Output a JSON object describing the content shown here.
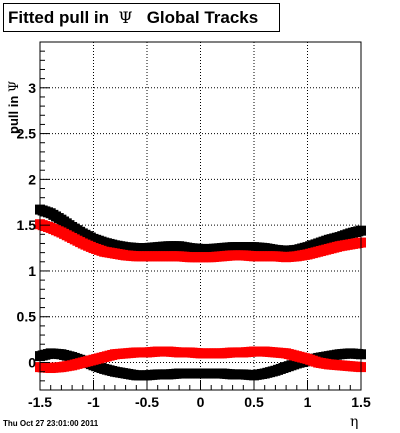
{
  "title": {
    "prefix": "Fitted pull in",
    "symbol": "Ψ",
    "suffix": "Global Tracks"
  },
  "ylabel": {
    "prefix": "pull in",
    "symbol": "Ψ"
  },
  "xlabel": "η",
  "datestamp": "Thu Oct 27 23:01:00 2011",
  "colors": {
    "black_series": "#000000",
    "red_series": "#ff0000",
    "grid": "#000000",
    "background": "#ffffff"
  },
  "chart_data": {
    "type": "scatter",
    "title": "Fitted pull in Ψ Global Tracks",
    "xlabel": "η",
    "ylabel": "pull in Ψ",
    "xlim": [
      -1.5,
      1.5
    ],
    "ylim": [
      -0.3,
      3.5
    ],
    "grid": true,
    "x_ticks": [
      "-1.5",
      "-1",
      "-0.5",
      "0",
      "0.5",
      "1",
      "1.5"
    ],
    "y_ticks": [
      "0",
      "0.5",
      "1",
      "1.5",
      "2",
      "2.5",
      "3"
    ],
    "series": [
      {
        "color": "#000000",
        "role": "sigma",
        "x": [
          -1.5,
          -1.4,
          -1.3,
          -1.2,
          -1.1,
          -1.0,
          -0.9,
          -0.8,
          -0.7,
          -0.6,
          -0.5,
          -0.4,
          -0.3,
          -0.2,
          -0.1,
          0.0,
          0.1,
          0.2,
          0.3,
          0.4,
          0.5,
          0.6,
          0.7,
          0.8,
          0.9,
          1.0,
          1.1,
          1.2,
          1.3,
          1.4,
          1.5
        ],
        "y": [
          1.67,
          1.63,
          1.56,
          1.48,
          1.41,
          1.35,
          1.31,
          1.28,
          1.26,
          1.25,
          1.25,
          1.26,
          1.27,
          1.27,
          1.25,
          1.24,
          1.24,
          1.25,
          1.26,
          1.26,
          1.26,
          1.25,
          1.23,
          1.22,
          1.23,
          1.26,
          1.3,
          1.34,
          1.37,
          1.41,
          1.44
        ]
      },
      {
        "color": "#ff0000",
        "role": "sigma",
        "x": [
          -1.5,
          -1.4,
          -1.3,
          -1.2,
          -1.1,
          -1.0,
          -0.9,
          -0.8,
          -0.7,
          -0.6,
          -0.5,
          -0.4,
          -0.3,
          -0.2,
          -0.1,
          0.0,
          0.1,
          0.2,
          0.3,
          0.4,
          0.5,
          0.6,
          0.7,
          0.8,
          0.9,
          1.0,
          1.1,
          1.2,
          1.3,
          1.4,
          1.5
        ],
        "y": [
          1.51,
          1.47,
          1.42,
          1.36,
          1.3,
          1.25,
          1.21,
          1.19,
          1.17,
          1.16,
          1.16,
          1.16,
          1.16,
          1.16,
          1.15,
          1.15,
          1.15,
          1.16,
          1.17,
          1.17,
          1.16,
          1.16,
          1.16,
          1.15,
          1.16,
          1.18,
          1.21,
          1.24,
          1.27,
          1.29,
          1.31
        ]
      },
      {
        "color": "#000000",
        "role": "mean",
        "x": [
          -1.5,
          -1.4,
          -1.3,
          -1.2,
          -1.1,
          -1.0,
          -0.9,
          -0.8,
          -0.7,
          -0.6,
          -0.5,
          -0.4,
          -0.3,
          -0.2,
          -0.1,
          0.0,
          0.1,
          0.2,
          0.3,
          0.4,
          0.5,
          0.6,
          0.7,
          0.8,
          0.9,
          1.0,
          1.1,
          1.2,
          1.3,
          1.4,
          1.5
        ],
        "y": [
          0.07,
          0.1,
          0.09,
          0.06,
          0.02,
          -0.03,
          -0.07,
          -0.1,
          -0.12,
          -0.14,
          -0.14,
          -0.13,
          -0.13,
          -0.12,
          -0.12,
          -0.12,
          -0.12,
          -0.12,
          -0.13,
          -0.13,
          -0.14,
          -0.12,
          -0.09,
          -0.05,
          -0.01,
          0.02,
          0.05,
          0.07,
          0.09,
          0.1,
          0.09
        ]
      },
      {
        "color": "#ff0000",
        "role": "mean",
        "x": [
          -1.5,
          -1.4,
          -1.3,
          -1.2,
          -1.1,
          -1.0,
          -0.9,
          -0.8,
          -0.7,
          -0.6,
          -0.5,
          -0.4,
          -0.3,
          -0.2,
          -0.1,
          0.0,
          0.1,
          0.2,
          0.3,
          0.4,
          0.5,
          0.6,
          0.7,
          0.8,
          0.9,
          1.0,
          1.1,
          1.2,
          1.3,
          1.4,
          1.5
        ],
        "y": [
          -0.05,
          -0.06,
          -0.05,
          -0.03,
          0.0,
          0.03,
          0.06,
          0.09,
          0.1,
          0.11,
          0.11,
          0.12,
          0.12,
          0.11,
          0.11,
          0.1,
          0.1,
          0.1,
          0.11,
          0.11,
          0.12,
          0.12,
          0.11,
          0.1,
          0.07,
          0.04,
          0.0,
          -0.02,
          -0.03,
          -0.04,
          -0.05
        ]
      }
    ]
  }
}
